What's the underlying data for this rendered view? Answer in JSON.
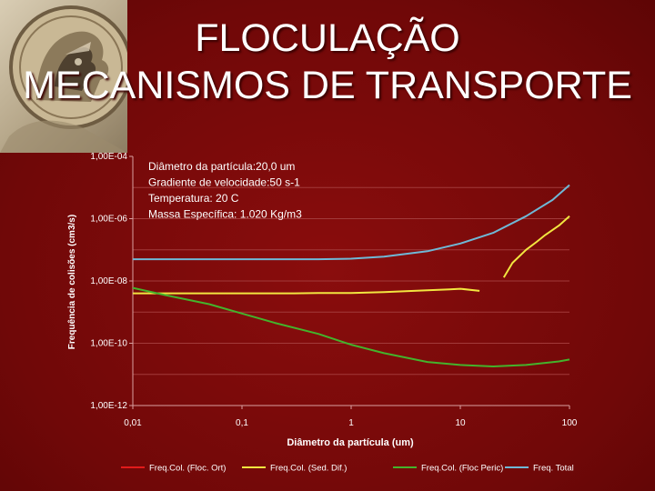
{
  "slide": {
    "title_line1": "FLOCULAÇÃO",
    "title_line2": "MECANISMOS DE TRANSPORTE",
    "logo_icon": "knight-medallion-icon"
  },
  "colors": {
    "background": "#7a0a0a",
    "floc_ort": "#e21b1b",
    "sed_dif": "#f2e640",
    "floc_peric": "#44b32c",
    "total": "#6fb8d6"
  },
  "chart_data": {
    "type": "line",
    "title": "",
    "xlabel": "Diâmetro da partícula (um)",
    "ylabel": "Frequência de colisões (cm3/s)",
    "x_scale": "log",
    "y_scale": "log",
    "xlim": [
      0.01,
      100
    ],
    "ylim": [
      1e-12,
      0.0001
    ],
    "x_ticks": [
      {
        "value": 0.01,
        "label": "0,01"
      },
      {
        "value": 0.1,
        "label": "0,1"
      },
      {
        "value": 1,
        "label": "1"
      },
      {
        "value": 10,
        "label": "10"
      },
      {
        "value": 100,
        "label": "100"
      }
    ],
    "y_ticks": [
      {
        "value": 0.0001,
        "label": "1,00E-04"
      },
      {
        "value": 1e-06,
        "label": "1,00E-06"
      },
      {
        "value": 1e-08,
        "label": "1,00E-08"
      },
      {
        "value": 1e-10,
        "label": "1,00E-10"
      },
      {
        "value": 1e-12,
        "label": "1,00E-12"
      }
    ],
    "grid": "horizontal",
    "legend_position": "bottom",
    "annotations": [
      "Diâmetro da partícula:20,0 um",
      "Gradiente de velocidade:50 s-1",
      "Temperatura: 20 C",
      "Massa Específica: 1.020 Kg/m3"
    ],
    "series": [
      {
        "name": "Freq.Col. (Floc. Ort)",
        "color": "#e21b1b",
        "points": []
      },
      {
        "name": "Freq.Col. (Sed. Dif.)",
        "color": "#f2e640",
        "segments": [
          [
            [
              0.01,
              4e-09
            ],
            [
              0.03,
              4e-09
            ],
            [
              0.1,
              4e-09
            ],
            [
              0.3,
              4e-09
            ],
            [
              0.5,
              4.1e-09
            ],
            [
              1,
              4.1e-09
            ],
            [
              2,
              4.4e-09
            ],
            [
              5,
              5e-09
            ],
            [
              8,
              5.4e-09
            ],
            [
              10,
              5.6e-09
            ],
            [
              15,
              4.8e-09
            ]
          ],
          [
            [
              25,
              1.3e-08
            ],
            [
              30,
              3.8e-08
            ],
            [
              40,
              1e-07
            ],
            [
              50,
              1.8e-07
            ],
            [
              60,
              3e-07
            ],
            [
              80,
              6e-07
            ],
            [
              100,
              1.2e-06
            ]
          ]
        ]
      },
      {
        "name": "Freq.Col. (Floc Peric)",
        "color": "#44b32c",
        "points": [
          [
            0.01,
            6e-09
          ],
          [
            0.02,
            3.5e-09
          ],
          [
            0.05,
            1.8e-09
          ],
          [
            0.1,
            9e-10
          ],
          [
            0.2,
            4.5e-10
          ],
          [
            0.5,
            2e-10
          ],
          [
            1,
            9e-11
          ],
          [
            2,
            4.8e-11
          ],
          [
            5,
            2.5e-11
          ],
          [
            10,
            2e-11
          ],
          [
            20,
            1.8e-11
          ],
          [
            40,
            2e-11
          ],
          [
            80,
            2.6e-11
          ],
          [
            100,
            3e-11
          ]
        ]
      },
      {
        "name": "Freq. Total",
        "color": "#6fb8d6",
        "points": [
          [
            0.01,
            5e-08
          ],
          [
            0.1,
            5e-08
          ],
          [
            0.5,
            5e-08
          ],
          [
            1,
            5.2e-08
          ],
          [
            2,
            6e-08
          ],
          [
            5,
            9e-08
          ],
          [
            10,
            1.6e-07
          ],
          [
            20,
            3.5e-07
          ],
          [
            40,
            1.2e-06
          ],
          [
            70,
            4e-06
          ],
          [
            100,
            1.2e-05
          ]
        ]
      }
    ]
  }
}
